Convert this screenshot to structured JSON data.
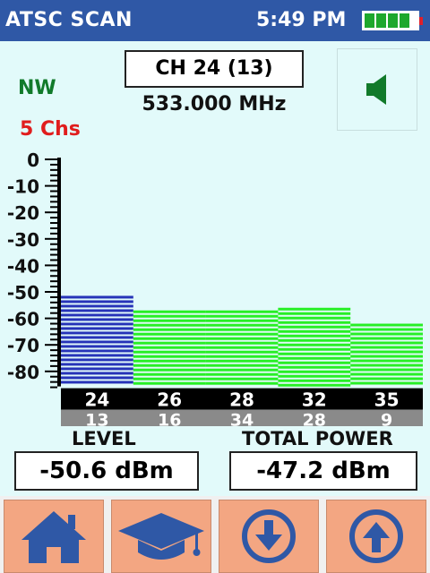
{
  "header": {
    "title": "ATSC SCAN",
    "time": "5:49 PM",
    "battery_icon": "battery-icon"
  },
  "channel": {
    "label": "CH 24 (13)",
    "frequency": "533.000 MHz"
  },
  "direction": "NW",
  "channel_count": "5 Chs",
  "speaker_icon": "speaker-icon",
  "chart_data": {
    "type": "bar",
    "y_ticks": [
      "0",
      "-10",
      "-20",
      "-30",
      "-40",
      "-50",
      "-60",
      "-70",
      "-80"
    ],
    "ylim": [
      -85,
      0
    ],
    "categories": [
      "24",
      "26",
      "28",
      "32",
      "35"
    ],
    "secondary_labels": [
      "13",
      "16",
      "34",
      "28",
      "9"
    ],
    "values": [
      -51.5,
      -57,
      -57,
      -56,
      -62
    ],
    "colors": [
      "#2633b8",
      "#27ef25",
      "#27ef25",
      "#27ef25",
      "#27ef25"
    ]
  },
  "readouts": {
    "level_label": "LEVEL",
    "level_value": "-50.6 dBm",
    "total_label": "TOTAL POWER",
    "total_value": "-47.2 dBm"
  },
  "footer": {
    "buttons": [
      "home-icon",
      "graduation-cap-icon",
      "down-arrow-icon",
      "up-arrow-icon"
    ]
  }
}
